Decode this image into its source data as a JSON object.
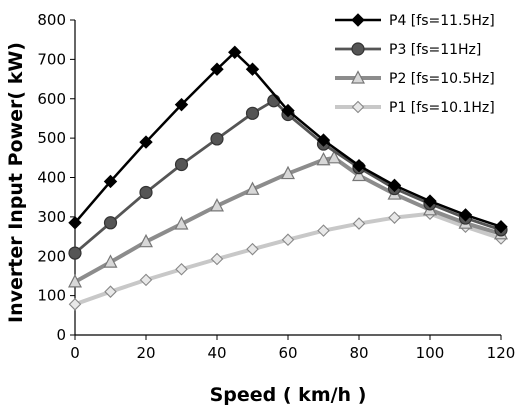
{
  "chart_data": {
    "type": "line",
    "xlabel": "Speed ( km/h )",
    "ylabel": "Inverter  Input Power( kW)",
    "xlim": [
      0,
      120
    ],
    "ylim": [
      0,
      800
    ],
    "xticks": [
      0,
      20,
      40,
      60,
      80,
      100,
      120
    ],
    "yticks": [
      0,
      100,
      200,
      300,
      400,
      500,
      600,
      700,
      800
    ],
    "grid": false,
    "legend_position": "top-right",
    "series": [
      {
        "name": "P4 [fs=11.5Hz]",
        "color": "#000000",
        "marker": "diamond-filled",
        "x": [
          0,
          10,
          20,
          30,
          40,
          45,
          50,
          60,
          70,
          80,
          90,
          100,
          110,
          120
        ],
        "y": [
          285,
          390,
          490,
          585,
          675,
          718,
          675,
          570,
          495,
          430,
          380,
          340,
          305,
          275
        ]
      },
      {
        "name": "P3 [fs=11Hz]",
        "color": "#555555",
        "marker": "circle-filled",
        "x": [
          0,
          10,
          20,
          30,
          40,
          50,
          56,
          60,
          70,
          80,
          90,
          100,
          110,
          120
        ],
        "y": [
          208,
          285,
          362,
          433,
          498,
          563,
          595,
          560,
          485,
          425,
          372,
          333,
          297,
          267
        ]
      },
      {
        "name": "P2 [fs=10.5Hz]",
        "color": "#8c8c8c",
        "marker": "triangle-open",
        "x": [
          0,
          10,
          20,
          30,
          40,
          50,
          60,
          70,
          73,
          80,
          90,
          100,
          110,
          120
        ],
        "y": [
          135,
          185,
          237,
          282,
          328,
          370,
          410,
          445,
          450,
          405,
          358,
          318,
          284,
          257
        ]
      },
      {
        "name": "P1 [fs=10.1Hz]",
        "color": "#c8c8c8",
        "marker": "diamond-open",
        "x": [
          0,
          10,
          20,
          30,
          40,
          50,
          60,
          70,
          80,
          90,
          100,
          110,
          120
        ],
        "y": [
          78,
          110,
          140,
          167,
          193,
          218,
          242,
          265,
          283,
          298,
          308,
          275,
          245
        ]
      }
    ]
  }
}
